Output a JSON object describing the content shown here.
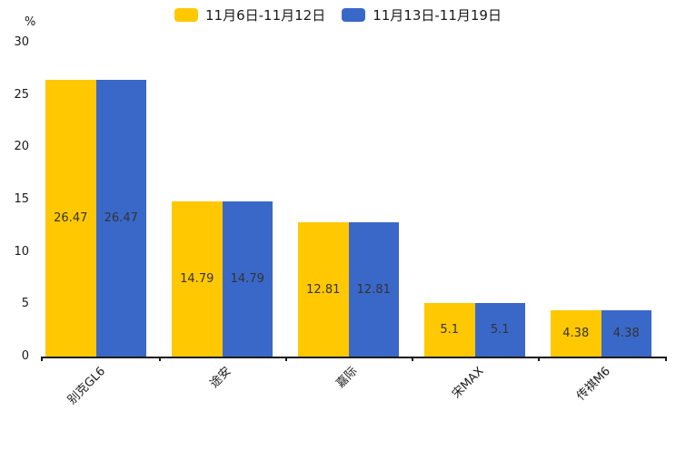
{
  "chart_data": {
    "type": "bar",
    "categories": [
      "别克GL6",
      "途安",
      "嘉际",
      "宋MAX",
      "传祺M6"
    ],
    "series": [
      {
        "name": "11月6日-11月12日",
        "color": "#FFC800",
        "values": [
          26.47,
          14.79,
          12.81,
          5.1,
          4.38
        ]
      },
      {
        "name": "11月13日-11月19日",
        "color": "#3A68C8",
        "values": [
          26.47,
          14.79,
          12.81,
          5.1,
          4.38
        ]
      }
    ],
    "title": "",
    "xlabel": "",
    "ylabel": "%",
    "ylim": [
      0,
      30
    ],
    "yticks": [
      0,
      5,
      10,
      15,
      20,
      25,
      30
    ],
    "legend_position": "top",
    "grid": false,
    "value_labels_shown": true,
    "colors": {
      "background": "#ffffff",
      "axis": "#1a1a1a",
      "text": "#1a1a1a",
      "value_label": "#333333"
    }
  }
}
